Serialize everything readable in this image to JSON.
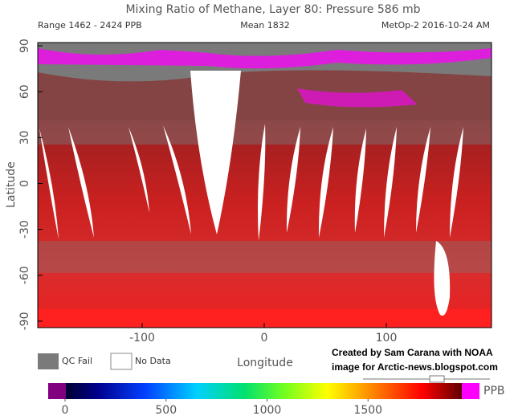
{
  "header": {
    "title": "Mixing Ratio of Methane, Layer 80: Pressure 586 mb",
    "range": "Range 1462 - 2424 PPB",
    "mean": "Mean 1832",
    "satellite": "MetOp-2 2016-10-24 AM"
  },
  "axes": {
    "y_label": "Latitude",
    "x_label": "Longitude",
    "yticks": [
      90,
      60,
      30,
      0,
      -30,
      -60,
      -90
    ],
    "xticks": [
      -100,
      0,
      100
    ]
  },
  "legend": {
    "qc_fail": "QC Fail",
    "no_data": "No Data"
  },
  "credit": [
    "Created by Sam Carana with NOAA",
    "image for Arctic-news.blogspot.com"
  ],
  "colorbar": {
    "unit": "PPB",
    "ticks": [
      0,
      500,
      1000,
      1500
    ]
  }
}
